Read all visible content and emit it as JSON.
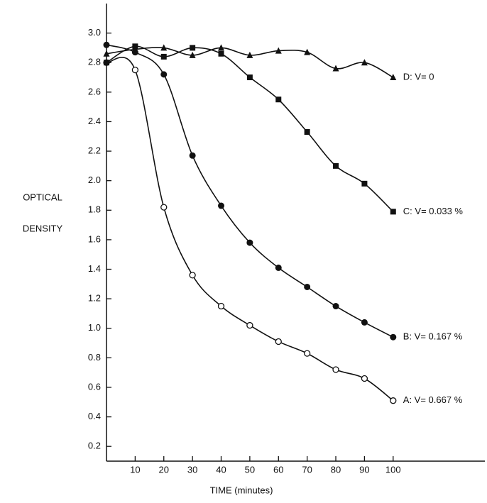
{
  "chart_data": {
    "type": "scatter-curve",
    "xlabel": "TIME (minutes)",
    "ylabel": [
      "OPTICAL",
      "DENSITY"
    ],
    "x": [
      0,
      10,
      20,
      30,
      40,
      50,
      60,
      70,
      80,
      90,
      100
    ],
    "series": [
      {
        "name": "A: V= 0.667 %",
        "color": "#111111",
        "marker": "open-circle",
        "values": [
          2.8,
          2.75,
          1.82,
          1.36,
          1.15,
          1.02,
          0.91,
          0.83,
          0.72,
          0.66,
          0.51
        ]
      },
      {
        "name": "B: V= 0.167 %",
        "color": "#111111",
        "marker": "circle",
        "values": [
          2.92,
          2.87,
          2.72,
          2.17,
          1.83,
          1.58,
          1.41,
          1.28,
          1.15,
          1.04,
          0.94
        ]
      },
      {
        "name": "C: V= 0.033 %",
        "color": "#111111",
        "marker": "square",
        "values": [
          2.8,
          2.91,
          2.84,
          2.9,
          2.86,
          2.7,
          2.55,
          2.33,
          2.1,
          1.98,
          1.79
        ]
      },
      {
        "name": "D: V= 0",
        "color": "#111111",
        "marker": "triangle",
        "values": [
          2.86,
          2.89,
          2.9,
          2.85,
          2.9,
          2.85,
          2.88,
          2.87,
          2.76,
          2.8,
          2.7
        ]
      }
    ],
    "xlim": [
      0,
      132
    ],
    "ylim": [
      0.1,
      3.2
    ],
    "xticks": [
      10,
      20,
      30,
      40,
      50,
      60,
      70,
      80,
      90,
      100
    ],
    "yticks": [
      0.2,
      0.4,
      0.6,
      0.8,
      {
        "value": 1,
        "label": "1.0"
      },
      1.2,
      1.4,
      1.6,
      1.8,
      {
        "value": 2,
        "label": "2.0"
      },
      2.2,
      2.4,
      2.6,
      2.8,
      {
        "value": 3,
        "label": "3.0"
      }
    ],
    "grid": false
  }
}
